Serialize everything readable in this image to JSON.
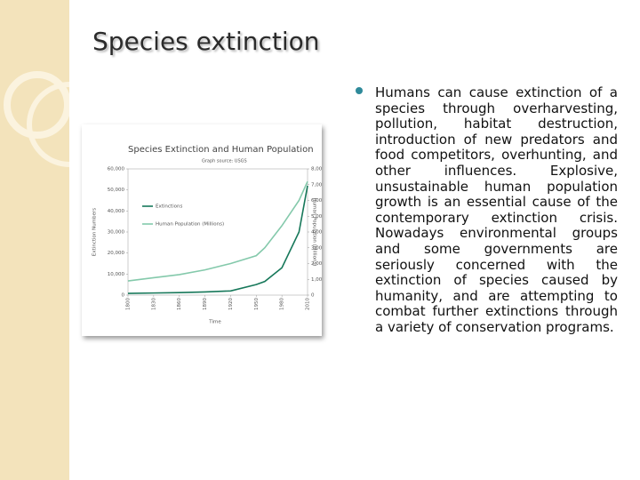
{
  "slide": {
    "title": "Species extinction",
    "body": "Humans can cause extinction of a species through overharvesting, pollution, habitat destruction, introduction of new predators and food competitors, overhunting, and other influences. Explosive, unsustainable human population growth is an essential cause of the contemporary extinction crisis. Nowadays environmental groups and some governments are seriously concerned with the extinction of species caused by humanity, and are attempting to combat further extinctions through a variety of conservation programs."
  },
  "chart_data": {
    "type": "line",
    "title": "Species Extinction and Human Population",
    "subtitle": "Graph source: USGS",
    "x_label": "Time",
    "y_label": "Extinction Numbers",
    "y2_label": "Human Population (Millions)",
    "x": [
      1800,
      1830,
      1860,
      1890,
      1920,
      1950,
      1960,
      1980,
      2000,
      2010
    ],
    "series": [
      {
        "name": "Extinctions",
        "color": "#17785a",
        "values": [
          800,
          1000,
          1200,
          1500,
          2000,
          5000,
          6500,
          13000,
          30000,
          52000
        ]
      },
      {
        "name": "Human Population (Millions)",
        "color": "#84c9ab",
        "axis": "y2",
        "values": [
          900,
          1100,
          1300,
          1600,
          2000,
          2500,
          3000,
          4400,
          6000,
          7200
        ]
      }
    ],
    "xlim": [
      1800,
      2010
    ],
    "xticks": [
      1800,
      1830,
      1860,
      1890,
      1920,
      1950,
      1980,
      2010
    ],
    "ylim": [
      0,
      60000
    ],
    "yticks": [
      0,
      {
        "value": 10000,
        "label": "10,000"
      },
      {
        "value": 20000,
        "label": "20,000"
      },
      {
        "value": 30000,
        "label": "30,000"
      },
      {
        "value": 40000,
        "label": "40,000"
      },
      {
        "value": 50000,
        "label": "50,000"
      },
      {
        "value": 60000,
        "label": "60,000"
      }
    ],
    "y2lim": [
      0,
      8000
    ],
    "y2ticks": [
      0,
      {
        "value": 1000,
        "label": "1,000"
      },
      {
        "value": 2000,
        "label": "2,000"
      },
      {
        "value": 3000,
        "label": "3,000"
      },
      {
        "value": 4000,
        "label": "4,000"
      },
      {
        "value": 5000,
        "label": "5,000"
      },
      {
        "value": 6000,
        "label": "6,000"
      },
      {
        "value": 7000,
        "label": "7,000"
      },
      {
        "value": 8000,
        "label": "8,000"
      }
    ],
    "legend": "upper left"
  }
}
